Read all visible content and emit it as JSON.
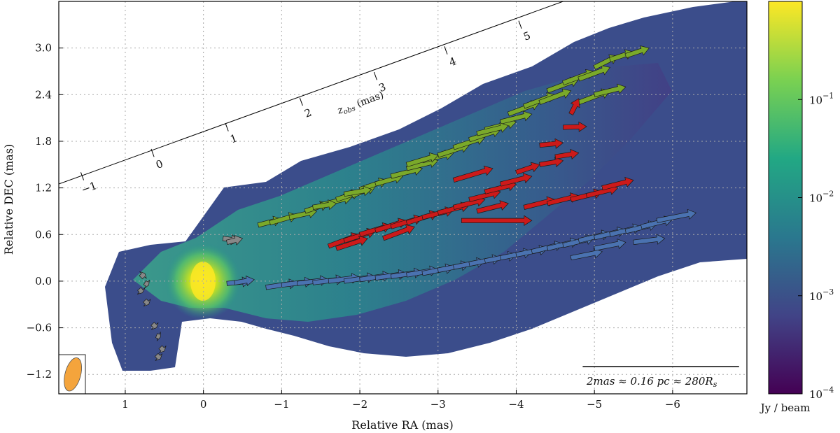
{
  "chart_data": {
    "type": "heatmap",
    "title": "",
    "xlabel": "Relative RA (mas)",
    "ylabel": "Relative DEC (mas)",
    "xlim": [
      1.85,
      -6.95
    ],
    "ylim": [
      -1.45,
      3.6
    ],
    "x_ticks": [
      {
        "value": 1,
        "label": "1"
      },
      {
        "value": 0,
        "label": "0"
      },
      {
        "value": -1,
        "label": "−1"
      },
      {
        "value": -2,
        "label": "−2"
      },
      {
        "value": -3,
        "label": "−3"
      },
      {
        "value": -4,
        "label": "−4"
      },
      {
        "value": -5,
        "label": "−5"
      },
      {
        "value": -6,
        "label": "−6"
      }
    ],
    "y_ticks": [
      {
        "value": 3.0,
        "label": "3.0"
      },
      {
        "value": 2.4,
        "label": "2.4"
      },
      {
        "value": 1.8,
        "label": "1.8"
      },
      {
        "value": 1.2,
        "label": "1.2"
      },
      {
        "value": 0.6,
        "label": "0.6"
      },
      {
        "value": 0.0,
        "label": "0.0"
      },
      {
        "value": -0.6,
        "label": "−0.6"
      },
      {
        "value": -1.2,
        "label": "−1.2"
      }
    ],
    "grid": true,
    "colorbar": {
      "label": "Jy / beam",
      "scale": "log",
      "range": [
        0.0001,
        1
      ],
      "colors": [
        "#440154",
        "#414487",
        "#2a788e",
        "#22a884",
        "#7ad151",
        "#fde725"
      ],
      "ticks": [
        {
          "base": "10",
          "exp": "−4",
          "value": 0.0001
        },
        {
          "base": "10",
          "exp": "−3",
          "value": 0.001
        },
        {
          "base": "10",
          "exp": "−2",
          "value": 0.01
        },
        {
          "base": "10",
          "exp": "−1",
          "value": 0.1
        }
      ]
    },
    "z_axis": {
      "label": "z",
      "label_sub": "obs",
      "label_unit": " (mas)",
      "start": [
        1.85,
        1.25
      ],
      "end": [
        -4.6,
        3.6
      ],
      "ticks": [
        {
          "value": -1,
          "label": "−1",
          "pos": [
            1.55,
            1.35
          ]
        },
        {
          "value": 0,
          "label": "0",
          "pos": [
            0.65,
            1.65
          ]
        },
        {
          "value": 1,
          "label": "1",
          "pos": [
            -0.3,
            1.98
          ]
        },
        {
          "value": 2,
          "label": "2",
          "pos": [
            -1.25,
            2.31
          ]
        },
        {
          "value": 3,
          "label": "3",
          "pos": [
            -2.2,
            2.64
          ]
        },
        {
          "value": 4,
          "label": "4",
          "pos": [
            -3.1,
            2.97
          ]
        },
        {
          "value": 5,
          "label": "5",
          "pos": [
            -4.05,
            3.3
          ]
        }
      ]
    },
    "scalebar": {
      "label": "2mas ≈ 0.16 pc ≈ 280R",
      "label_sub": "s",
      "x_from": -4.85,
      "x_to": -6.85,
      "y": -1.1
    },
    "beam": {
      "x": 1.67,
      "y": -1.2,
      "width": 0.2,
      "height": 0.44,
      "angle": 15,
      "color": "#f4a43c"
    },
    "velocity_series": [
      {
        "color": "#7aa92a",
        "vectors": [
          [
            -0.7,
            0.72,
            -1.0,
            0.8
          ],
          [
            -0.85,
            0.75,
            -1.2,
            0.85
          ],
          [
            -1.1,
            0.82,
            -1.45,
            0.9
          ],
          [
            -1.3,
            0.9,
            -1.6,
            1.0
          ],
          [
            -1.5,
            0.98,
            -1.9,
            1.08
          ],
          [
            -1.7,
            1.05,
            -2.0,
            1.15
          ],
          [
            -1.9,
            1.1,
            -2.2,
            1.22
          ],
          [
            -2.0,
            1.18,
            -2.35,
            1.3
          ],
          [
            -2.2,
            1.25,
            -2.55,
            1.35
          ],
          [
            -2.4,
            1.35,
            -2.8,
            1.45
          ],
          [
            -2.6,
            1.45,
            -3.0,
            1.55
          ],
          [
            -2.8,
            1.55,
            -3.2,
            1.65
          ],
          [
            -3.0,
            1.62,
            -3.4,
            1.75
          ],
          [
            -3.2,
            1.72,
            -3.6,
            1.85
          ],
          [
            -3.4,
            1.82,
            -3.8,
            1.95
          ],
          [
            -3.6,
            1.95,
            -4.0,
            2.05
          ],
          [
            -3.8,
            2.05,
            -4.2,
            2.15
          ],
          [
            -3.9,
            2.15,
            -4.3,
            2.3
          ],
          [
            -4.1,
            2.25,
            -4.5,
            2.4
          ],
          [
            -4.3,
            2.3,
            -4.7,
            2.45
          ],
          [
            -4.4,
            2.45,
            -4.8,
            2.6
          ],
          [
            -4.6,
            2.55,
            -5.0,
            2.7
          ],
          [
            -4.8,
            2.6,
            -5.2,
            2.75
          ],
          [
            -5.0,
            2.75,
            -5.3,
            2.9
          ],
          [
            -5.2,
            2.85,
            -5.5,
            2.95
          ],
          [
            -5.4,
            2.9,
            -5.7,
            3.0
          ],
          [
            -4.8,
            2.3,
            -5.2,
            2.45
          ],
          [
            -5.0,
            2.4,
            -5.4,
            2.5
          ],
          [
            -1.4,
            0.95,
            -1.7,
            1.0
          ],
          [
            -1.8,
            1.12,
            -2.15,
            1.18
          ],
          [
            -2.6,
            1.5,
            -3.0,
            1.62
          ],
          [
            -3.5,
            1.9,
            -3.9,
            2.0
          ]
        ]
      },
      {
        "color": "#cc1a1a",
        "vectors": [
          [
            -1.6,
            0.45,
            -2.0,
            0.6
          ],
          [
            -1.8,
            0.52,
            -2.2,
            0.65
          ],
          [
            -2.0,
            0.6,
            -2.4,
            0.72
          ],
          [
            -2.2,
            0.65,
            -2.6,
            0.78
          ],
          [
            -2.4,
            0.7,
            -2.8,
            0.82
          ],
          [
            -2.6,
            0.75,
            -3.0,
            0.88
          ],
          [
            -2.8,
            0.82,
            -3.2,
            0.92
          ],
          [
            -3.0,
            0.88,
            -3.4,
            0.98
          ],
          [
            -3.2,
            0.95,
            -3.6,
            1.05
          ],
          [
            -3.4,
            1.05,
            -3.8,
            1.15
          ],
          [
            -3.6,
            1.15,
            -4.0,
            1.25
          ],
          [
            -3.8,
            1.25,
            -4.2,
            1.35
          ],
          [
            -4.0,
            1.4,
            -4.3,
            1.5
          ],
          [
            -4.3,
            1.5,
            -4.6,
            1.55
          ],
          [
            -4.5,
            1.6,
            -4.8,
            1.65
          ],
          [
            -4.1,
            0.95,
            -4.5,
            1.05
          ],
          [
            -4.4,
            1.0,
            -4.8,
            1.1
          ],
          [
            -4.7,
            1.05,
            -5.1,
            1.15
          ],
          [
            -4.9,
            1.1,
            -5.3,
            1.2
          ],
          [
            -5.1,
            1.2,
            -5.5,
            1.3
          ],
          [
            -3.3,
            0.78,
            -4.2,
            0.78
          ],
          [
            -3.2,
            1.3,
            -3.7,
            1.45
          ],
          [
            -4.6,
            1.98,
            -4.9,
            1.99
          ],
          [
            -4.3,
            1.75,
            -4.6,
            1.78
          ],
          [
            -4.7,
            2.15,
            -4.8,
            2.35
          ],
          [
            -1.7,
            0.42,
            -2.1,
            0.55
          ],
          [
            -2.3,
            0.55,
            -2.7,
            0.7
          ],
          [
            -3.5,
            0.9,
            -3.9,
            1.0
          ]
        ]
      },
      {
        "color": "#4a72b0",
        "vectors": [
          [
            -0.8,
            -0.08,
            -1.2,
            -0.02
          ],
          [
            -1.0,
            -0.05,
            -1.4,
            0.0
          ],
          [
            -1.2,
            -0.03,
            -1.6,
            0.02
          ],
          [
            -1.4,
            -0.02,
            -1.8,
            0.03
          ],
          [
            -1.6,
            0.0,
            -2.0,
            0.05
          ],
          [
            -1.8,
            0.0,
            -2.2,
            0.06
          ],
          [
            -2.0,
            0.02,
            -2.4,
            0.08
          ],
          [
            -2.2,
            0.04,
            -2.6,
            0.1
          ],
          [
            -2.4,
            0.06,
            -2.8,
            0.12
          ],
          [
            -2.6,
            0.08,
            -3.0,
            0.15
          ],
          [
            -2.8,
            0.1,
            -3.2,
            0.18
          ],
          [
            -3.0,
            0.14,
            -3.4,
            0.22
          ],
          [
            -3.2,
            0.18,
            -3.6,
            0.26
          ],
          [
            -3.4,
            0.22,
            -3.8,
            0.3
          ],
          [
            -3.6,
            0.26,
            -4.0,
            0.34
          ],
          [
            -3.8,
            0.3,
            -4.2,
            0.38
          ],
          [
            -4.0,
            0.34,
            -4.4,
            0.42
          ],
          [
            -4.2,
            0.38,
            -4.6,
            0.48
          ],
          [
            -4.4,
            0.42,
            -4.8,
            0.52
          ],
          [
            -4.6,
            0.46,
            -5.0,
            0.56
          ],
          [
            -4.8,
            0.52,
            -5.2,
            0.62
          ],
          [
            -5.0,
            0.56,
            -5.4,
            0.66
          ],
          [
            -5.2,
            0.6,
            -5.6,
            0.7
          ],
          [
            -5.4,
            0.64,
            -5.8,
            0.74
          ],
          [
            -5.6,
            0.7,
            -6.0,
            0.8
          ],
          [
            -5.8,
            0.78,
            -6.3,
            0.88
          ],
          [
            -4.7,
            0.3,
            -5.1,
            0.38
          ],
          [
            -5.0,
            0.42,
            -5.4,
            0.5
          ],
          [
            -5.5,
            0.5,
            -5.9,
            0.55
          ],
          [
            -0.3,
            -0.03,
            -0.6,
            0.0
          ],
          [
            -0.4,
            -0.02,
            -0.65,
            0.02
          ]
        ]
      },
      {
        "color": "#888888",
        "vectors": [
          [
            0.8,
            0.05,
            0.75,
            0.1
          ],
          [
            0.75,
            -0.02,
            0.7,
            -0.05
          ],
          [
            0.82,
            -0.1,
            0.78,
            -0.15
          ],
          [
            0.75,
            -0.25,
            0.7,
            -0.3
          ],
          [
            0.65,
            -0.55,
            0.6,
            -0.6
          ],
          [
            0.6,
            -0.7,
            0.55,
            -0.72
          ],
          [
            0.55,
            -0.85,
            0.5,
            -0.9
          ],
          [
            0.6,
            -0.95,
            0.55,
            -1.0
          ],
          [
            -0.25,
            0.55,
            -0.45,
            0.52
          ],
          [
            -0.3,
            0.5,
            -0.5,
            0.55
          ]
        ]
      }
    ]
  }
}
